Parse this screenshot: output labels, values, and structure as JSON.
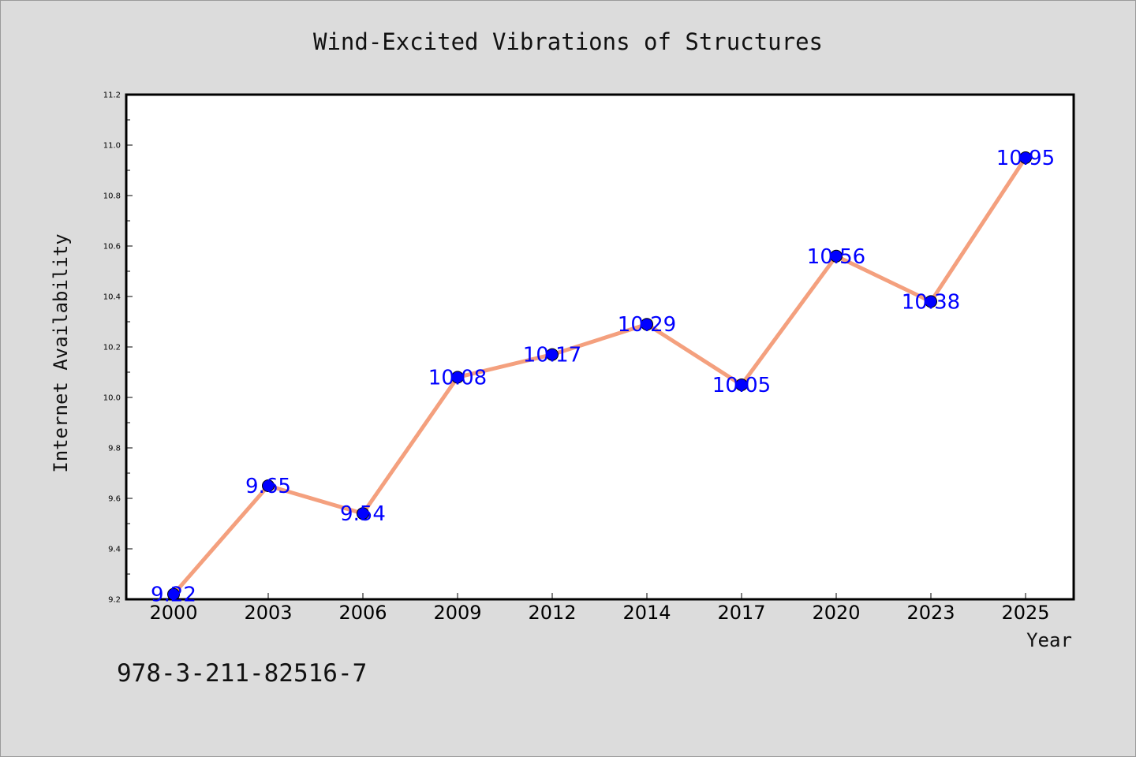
{
  "chart_data": {
    "type": "line",
    "title": "Wind-Excited Vibrations of Structures",
    "xlabel": "Year",
    "ylabel": "Internet Availability",
    "categories": [
      "2000",
      "2003",
      "2006",
      "2009",
      "2012",
      "2014",
      "2017",
      "2020",
      "2023",
      "2025"
    ],
    "values": [
      9.22,
      9.65,
      9.54,
      10.08,
      10.17,
      10.29,
      10.05,
      10.56,
      10.38,
      10.95
    ],
    "data_labels": [
      "9.22",
      "9.65",
      "9.54",
      "10.08",
      "10.17",
      "10.29",
      "10.05",
      "10.56",
      "10.38",
      "10.95"
    ],
    "ylim": [
      9.2,
      11.2
    ],
    "y_ticks": [
      9.2,
      9.4,
      9.6,
      9.8,
      10.0,
      10.2,
      10.4,
      10.6,
      10.8,
      11.0,
      11.2
    ],
    "y_tick_labels": [
      "9.2",
      "9.4",
      "9.6",
      "9.8",
      "10.0",
      "10.2",
      "10.4",
      "10.6",
      "10.8",
      "11.0",
      "11.2"
    ],
    "grid": false,
    "legend": "none",
    "colors": {
      "line": "#f4a07e",
      "marker": "#0000ff",
      "label": "#0000ff",
      "background": "#dcdcdc",
      "plot_background": "#ffffff"
    }
  },
  "footer": {
    "isbn": "978-3-211-82516-7"
  }
}
